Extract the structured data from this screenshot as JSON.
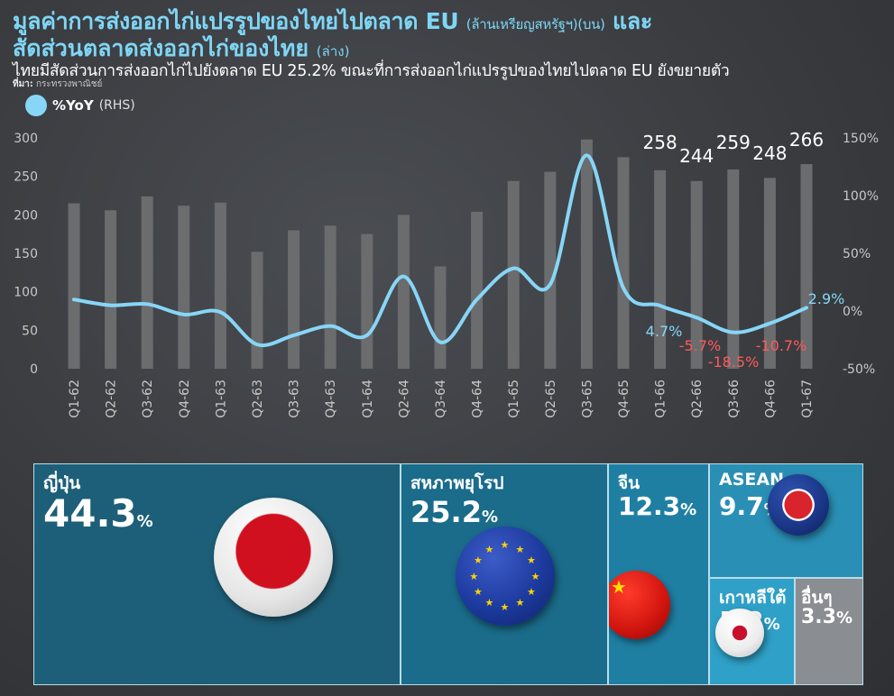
{
  "header": {
    "title_line1": "มูลค่าการส่งออกไก่แปรรูปของไทยไปตลาด EU",
    "title_line1_sub": "(ล้านเหรียญสหรัฐฯ)(บน)",
    "title_line1_end": "และ",
    "title_line2": "สัดส่วนตลาดส่งออกไก่ของไทย",
    "title_line2_sub": "(ล่าง)",
    "subtitle": "ไทยมีสัดส่วนการส่งออกไก่ไปยังตลาด EU 25.2% ขณะที่การส่งออกไก่แปรรูปของไทยไปตลาด EU ยังขยายตัว",
    "source_label": "ที่มา:",
    "source": "กระทรวงพาณิชย์"
  },
  "legend": {
    "label": "%YoY",
    "note": "(RHS)"
  },
  "colors": {
    "bar": "#6b6c6e",
    "line": "#87d6f7",
    "negative": "#ff5a5a",
    "accent": "#7fd6f5"
  },
  "chart_data": {
    "type": "bar",
    "categories": [
      "Q1-62",
      "Q2-62",
      "Q3-62",
      "Q4-62",
      "Q1-63",
      "Q2-63",
      "Q3-63",
      "Q4-63",
      "Q1-64",
      "Q2-64",
      "Q3-64",
      "Q4-64",
      "Q1-65",
      "Q2-65",
      "Q3-65",
      "Q4-65",
      "Q1-66",
      "Q2-66",
      "Q3-66",
      "Q4-66",
      "Q1-67"
    ],
    "series": [
      {
        "values": [
          215,
          206,
          224,
          212,
          216,
          152,
          180,
          186,
          175,
          200,
          133,
          204,
          244,
          256,
          298,
          275,
          258,
          244,
          259,
          248,
          266
        ],
        "axis": "left"
      },
      {
        "name": "%YoY",
        "values": [
          10,
          5,
          6,
          -3,
          -1,
          -29,
          -21,
          -13,
          -21,
          30,
          -27,
          10,
          37,
          23,
          135,
          20,
          4.7,
          -5.7,
          -18.5,
          -10.7,
          2.9
        ],
        "axis": "right",
        "type": "line"
      }
    ],
    "ylim": [
      0,
      300
    ],
    "yticks": [
      0,
      50,
      100,
      150,
      200,
      250,
      300
    ],
    "ylim_right": [
      -50,
      150
    ],
    "yticks_right": [
      "-50%",
      "0%",
      "50%",
      "100%",
      "150%"
    ],
    "bar_labels": [
      {
        "index": 16,
        "text": "258"
      },
      {
        "index": 17,
        "text": "244"
      },
      {
        "index": 18,
        "text": "259"
      },
      {
        "index": 19,
        "text": "248"
      },
      {
        "index": 20,
        "text": "266"
      }
    ],
    "line_labels": [
      {
        "index": 16,
        "text": "4.7%"
      },
      {
        "index": 17,
        "text": "-5.7%"
      },
      {
        "index": 18,
        "text": "-18.5%"
      },
      {
        "index": 19,
        "text": "-10.7%"
      },
      {
        "index": 20,
        "text": "2.9%"
      }
    ],
    "grid": false,
    "legend_position": "top-left"
  },
  "treemap": {
    "title": "สัดส่วนตลาดส่งออกไก่ของไทย",
    "unit": "%",
    "items": [
      {
        "name": "ญี่ปุ่น",
        "value": "44.3",
        "color": "#1d5f78"
      },
      {
        "name": "สหภาพยุโรป",
        "value": "25.2",
        "color": "#1a6c8a"
      },
      {
        "name": "จีน",
        "value": "12.3",
        "color": "#1f7fa3"
      },
      {
        "name": "ASEAN",
        "value": "9.7",
        "color": "#2a8fb5"
      },
      {
        "name": "เกาหลีใต้",
        "value": "5.2",
        "color": "#2fa0c7"
      },
      {
        "name": "อื่นๆ",
        "value": "3.3",
        "color": "#8a8d91"
      }
    ]
  }
}
